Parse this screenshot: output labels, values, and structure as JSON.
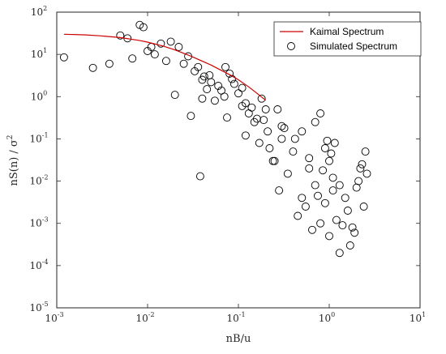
{
  "chart_data": {
    "type": "scatter",
    "xlabel": "nB/u",
    "ylabel": "nS(n) / σ",
    "ylabel_sup": "2",
    "xscale": "log",
    "yscale": "log",
    "xlim": [
      0.001,
      10
    ],
    "ylim": [
      1e-05,
      100
    ],
    "x_ticks": [
      {
        "base": "10",
        "exp": "-3"
      },
      {
        "base": "10",
        "exp": "-2"
      },
      {
        "base": "10",
        "exp": "-1"
      },
      {
        "base": "10",
        "exp": "0"
      },
      {
        "base": "10",
        "exp": "1"
      }
    ],
    "y_ticks": [
      {
        "base": "10",
        "exp": "-5"
      },
      {
        "base": "10",
        "exp": "-4"
      },
      {
        "base": "10",
        "exp": "-3"
      },
      {
        "base": "10",
        "exp": "-2"
      },
      {
        "base": "10",
        "exp": "-1"
      },
      {
        "base": "10",
        "exp": "0"
      },
      {
        "base": "10",
        "exp": "1"
      },
      {
        "base": "10",
        "exp": "2"
      }
    ],
    "grid": false,
    "legend_position": "top-right",
    "series": [
      {
        "name": "Kaimal Spectrum",
        "kind": "line",
        "color": "#cc0000",
        "x": [
          0.0012,
          0.002,
          0.003,
          0.005,
          0.008,
          0.01,
          0.015,
          0.02,
          0.03,
          0.05,
          0.08,
          0.1,
          0.13,
          0.16,
          0.2
        ],
        "y": [
          30,
          29,
          27.5,
          25,
          21.5,
          19.5,
          15.6,
          12.8,
          9.1,
          5.6,
          3.3,
          2.5,
          1.7,
          1.2,
          0.82
        ]
      },
      {
        "name": "Simulated Spectrum",
        "kind": "scatter",
        "marker": "circle-open",
        "color": "#000000",
        "x": [
          0.0012,
          0.0025,
          0.0038,
          0.005,
          0.006,
          0.0068,
          0.0082,
          0.009,
          0.01,
          0.011,
          0.012,
          0.014,
          0.016,
          0.018,
          0.02,
          0.022,
          0.025,
          0.028,
          0.03,
          0.033,
          0.036,
          0.038,
          0.04,
          0.042,
          0.045,
          0.05,
          0.055,
          0.06,
          0.07,
          0.072,
          0.08,
          0.09,
          0.1,
          0.11,
          0.12,
          0.13,
          0.15,
          0.17,
          0.2,
          0.22,
          0.25,
          0.3,
          0.35,
          0.4,
          0.5,
          0.6,
          0.7,
          0.8,
          0.9,
          1.0,
          1.1,
          1.2,
          1.3,
          1.5,
          1.7,
          2.0,
          2.2,
          2.5,
          0.9,
          1.0,
          1.1,
          1.3,
          0.5,
          0.7,
          0.8,
          0.95,
          1.05,
          1.6,
          1.8,
          2.1,
          2.3,
          2.6,
          0.3,
          0.18,
          0.12,
          0.065,
          0.04,
          0.16,
          0.24,
          0.28,
          0.45,
          0.55,
          0.65,
          0.75,
          0.85,
          1.15,
          1.4,
          1.9,
          2.4,
          0.6,
          0.42,
          0.32,
          0.27,
          0.21,
          0.19,
          0.14,
          0.11,
          0.085,
          0.075,
          0.048
        ],
        "y": [
          8.5,
          4.8,
          6.0,
          28,
          24,
          8,
          50,
          44,
          12,
          15,
          10,
          18,
          7,
          20,
          1.1,
          15,
          6,
          9,
          0.35,
          4,
          5,
          0.013,
          2.5,
          3,
          1.5,
          2.2,
          0.8,
          1.8,
          1.0,
          5,
          3.5,
          2.0,
          1.2,
          0.6,
          0.12,
          0.4,
          0.25,
          0.08,
          0.5,
          0.06,
          0.03,
          0.1,
          0.015,
          0.05,
          0.004,
          0.02,
          0.008,
          0.001,
          0.003,
          0.0005,
          0.006,
          0.0012,
          0.0002,
          0.004,
          0.0003,
          0.007,
          0.02,
          0.05,
          0.06,
          0.03,
          0.012,
          0.008,
          0.15,
          0.25,
          0.4,
          0.09,
          0.045,
          0.002,
          0.0008,
          0.01,
          0.025,
          0.015,
          0.2,
          0.9,
          0.7,
          1.4,
          0.9,
          0.3,
          0.03,
          0.006,
          0.0015,
          0.0025,
          0.0007,
          0.0045,
          0.018,
          0.08,
          0.0009,
          0.0006,
          0.0025,
          0.035,
          0.1,
          0.18,
          0.5,
          0.15,
          0.28,
          0.55,
          1.6,
          2.6,
          0.32,
          3.2
        ]
      }
    ]
  }
}
